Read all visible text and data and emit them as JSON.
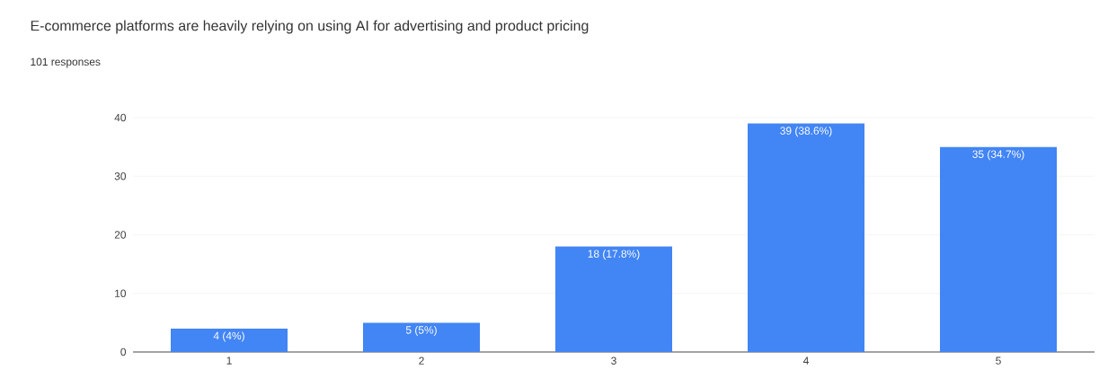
{
  "chart_data": {
    "type": "bar",
    "title": "E-commerce platforms are heavily relying on using AI for advertising and product pricing",
    "subtitle": "101 responses",
    "categories": [
      "1",
      "2",
      "3",
      "4",
      "5"
    ],
    "values": [
      4,
      5,
      18,
      39,
      35
    ],
    "value_labels": [
      "4 (4%)",
      "5 (5%)",
      "18 (17.8%)",
      "39 (38.6%)",
      "35 (34.7%)"
    ],
    "color": "#4285f4",
    "ylim": [
      0,
      40
    ],
    "yticks": [
      0,
      10,
      20,
      30,
      40
    ],
    "grid": "y"
  }
}
